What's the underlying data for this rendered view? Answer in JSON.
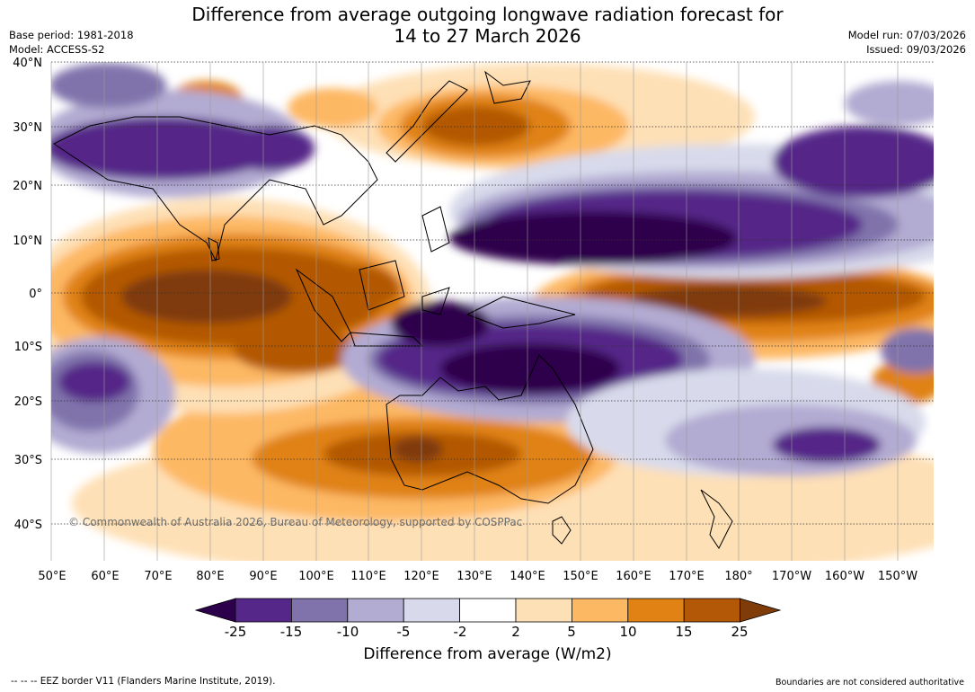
{
  "title_line1": "Difference from average outgoing longwave radiation forecast for",
  "title_line2": "14 to 27 March 2026",
  "base_period": "Base period: 1981-2018",
  "model": "Model: ACCESS-S2",
  "model_run": "Model run: 07/03/2026",
  "issued": "Issued: 09/03/2026",
  "copyright": "© Commonwealth of Australia 2026, Bureau of Meteorology, supported by COSPPac",
  "lat_labels": [
    "40°N",
    "30°N",
    "20°N",
    "10°N",
    "0°",
    "10°S",
    "20°S",
    "30°S",
    "40°S"
  ],
  "lon_labels": [
    "50°E",
    "60°E",
    "70°E",
    "80°E",
    "90°E",
    "100°E",
    "110°E",
    "120°E",
    "130°E",
    "140°E",
    "150°E",
    "160°E",
    "170°E",
    "180°",
    "170°W",
    "160°W",
    "150°W"
  ],
  "colorbar": {
    "ticks": [
      "-25",
      "-15",
      "-10",
      "-5",
      "-2",
      "2",
      "5",
      "10",
      "15",
      "25"
    ],
    "colors": [
      "#2d004b",
      "#542788",
      "#8073ac",
      "#b2abd2",
      "#d8daeb",
      "#ffffff",
      "#fee0b6",
      "#fdb863",
      "#e08214",
      "#b35806",
      "#7f3b08"
    ],
    "title": "Difference from average (W/m2)"
  },
  "eez_note": "--  --  -- EEZ border V11 (Flanders Marine Institute, 2019).",
  "boundary_note": "Boundaries are not considered authoritative"
}
